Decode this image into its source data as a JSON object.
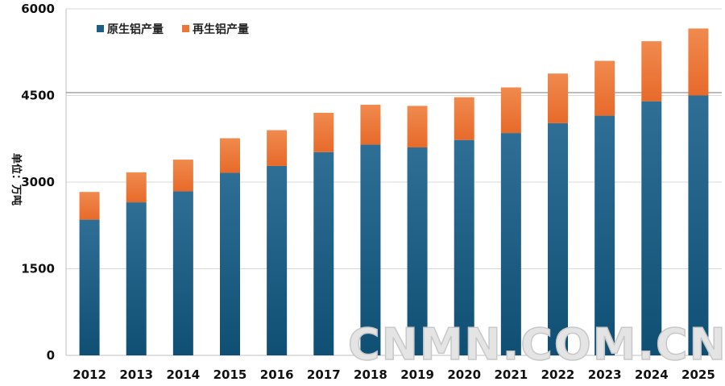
{
  "chart_data": {
    "type": "bar",
    "stacked": true,
    "title": "",
    "xlabel": "",
    "ylabel": "单位：万吨",
    "ylim": [
      0,
      6000
    ],
    "yticks": [
      0,
      1500,
      3000,
      4500,
      6000
    ],
    "categories": [
      "2012",
      "2013",
      "2014",
      "2015",
      "2016",
      "2017",
      "2018",
      "2019",
      "2020",
      "2021",
      "2022",
      "2023",
      "2024",
      "2025"
    ],
    "series": [
      {
        "name": "原生铝产量",
        "color": "#1b5f86",
        "values": [
          2350,
          2650,
          2840,
          3160,
          3280,
          3520,
          3650,
          3600,
          3730,
          3850,
          4020,
          4150,
          4400,
          4500
        ]
      },
      {
        "name": "再生铝产量",
        "color": "#ec7638",
        "values": [
          480,
          520,
          550,
          600,
          620,
          680,
          690,
          720,
          740,
          790,
          860,
          950,
          1040,
          1160
        ]
      }
    ],
    "reference_line": 4550,
    "legend_position": "top-left",
    "grid": true
  },
  "watermark": "CNMN.COM.CN"
}
